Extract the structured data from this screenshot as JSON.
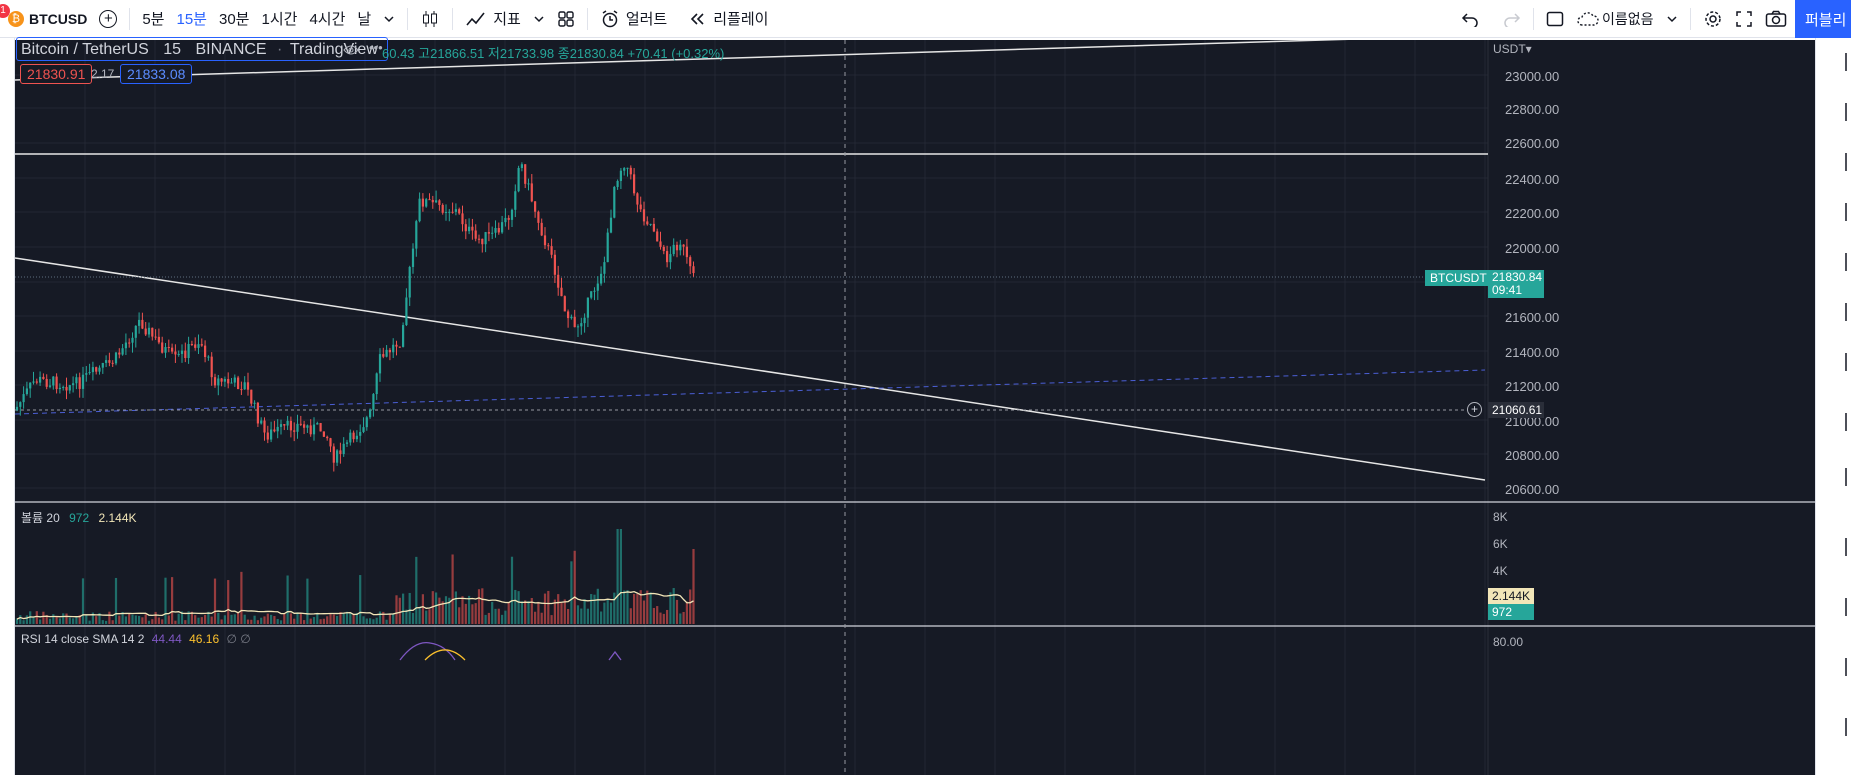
{
  "toolbar": {
    "symbol": "BTCUSD",
    "intervals": [
      "5분",
      "15분",
      "30분",
      "1시간",
      "4시간",
      "날"
    ],
    "active_interval": "15분",
    "indicators_label": "지표",
    "alert_label": "얼러트",
    "replay_label": "리플레이",
    "layout_name": "이름없음",
    "publish_label": "퍼블리",
    "notification_count": "1"
  },
  "legend": {
    "pair": "Bitcoin / TetherUS",
    "interval": "15",
    "exchange": "BINANCE",
    "source": "TradingView",
    "ohlc_text": "60.43 고21866.51 저21733.98 종21830.84 +70.41 (+0.32%)",
    "bid": "21830.91",
    "spread": "2.17",
    "ask": "21833.08"
  },
  "price_axis": {
    "currency": "USDT",
    "labels": [
      "23000.00",
      "22800.00",
      "22600.00",
      "22400.00",
      "22200.00",
      "22000.00",
      "21600.00",
      "21400.00",
      "21200.00",
      "21000.00",
      "20800.00",
      "20600.00"
    ],
    "symbol_tag": "BTCUSDT",
    "last_price": "21830.84",
    "countdown": "09:41",
    "crosshair_price": "21060.61"
  },
  "volume_pane": {
    "title": "볼륨 20",
    "value": "972",
    "ma_value": "2.144K",
    "axis_labels": [
      "8K",
      "6K",
      "4K"
    ],
    "ma_tag": "2.144K",
    "value_tag": "972"
  },
  "rsi_pane": {
    "title": "RSI 14 close SMA 14 2",
    "rsi_value": "44.44",
    "sma_value": "46.16",
    "extras": "∅ ∅",
    "axis_label": "80.00"
  },
  "colors": {
    "up": "#26a69a",
    "down": "#ef5350",
    "accent": "#2962ff",
    "background": "#161a25"
  }
}
